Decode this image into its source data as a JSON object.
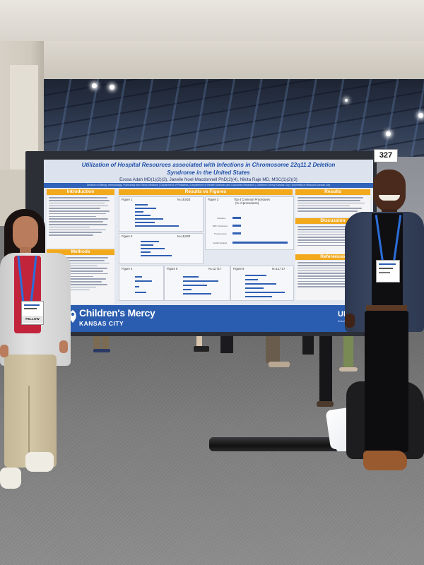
{
  "booth": {
    "number": "327"
  },
  "poster": {
    "title_line1": "Utilization of Hospital Resources associated with Infections in Chromosome 22q11.2 Deletion",
    "title_line2": "Syndrome in the United States",
    "authors": "Esosa Adah MD(1)(2)(3), Janelle Noel-Macdonnell PhD(2)(4), Nikita Raje MD, MSC(1)(2)(3)",
    "affiliations": "Division of Allergy, Immunology, Pulmonary and Sleep Medicine | Department of Pediatrics | Department of Health Sciences and Outcomes Research | Children's Mercy Kansas City | University of Missouri-Kansas City",
    "sections": {
      "introduction": "Introduction",
      "methods": "Methods",
      "results_vs_figures": "Results vs Figures",
      "results": "Results",
      "discussion": "Discussion",
      "references": "References"
    },
    "figures": {
      "fig1": "Figure 1",
      "fig1_n": "N=18,823",
      "fig2": "Figure 2",
      "fig2_title": "Top 4 Common Procedures",
      "fig2_sub": "(% of procedures)",
      "fig2_labels": [
        "Intubation",
        "RBC Transfusion",
        "Thoracentesis",
        "Cardiac Related"
      ],
      "fig3": "Figure 3",
      "fig4": "Figure 4",
      "fig5": "Figure 5",
      "fig6": "Figure 6",
      "fig_n2": "N=18,823",
      "fig_n3": "N=12,717",
      "fig_n4": "N=12,717"
    },
    "footer": {
      "org_name": "Children's Mercy",
      "org_city": "KANSAS CITY",
      "partner": "UMKC",
      "partner_sub": "School of Medicine"
    }
  },
  "badges": {
    "left_badge": "FELLOW",
    "right_badge": ""
  },
  "colors": {
    "poster_blue": "#2a5db0",
    "section_orange": "#f2a91c",
    "title_blue": "#1e4fa8",
    "carpet_gray": "#7d7d7d",
    "lanyard_blue": "#2b6ed9"
  }
}
